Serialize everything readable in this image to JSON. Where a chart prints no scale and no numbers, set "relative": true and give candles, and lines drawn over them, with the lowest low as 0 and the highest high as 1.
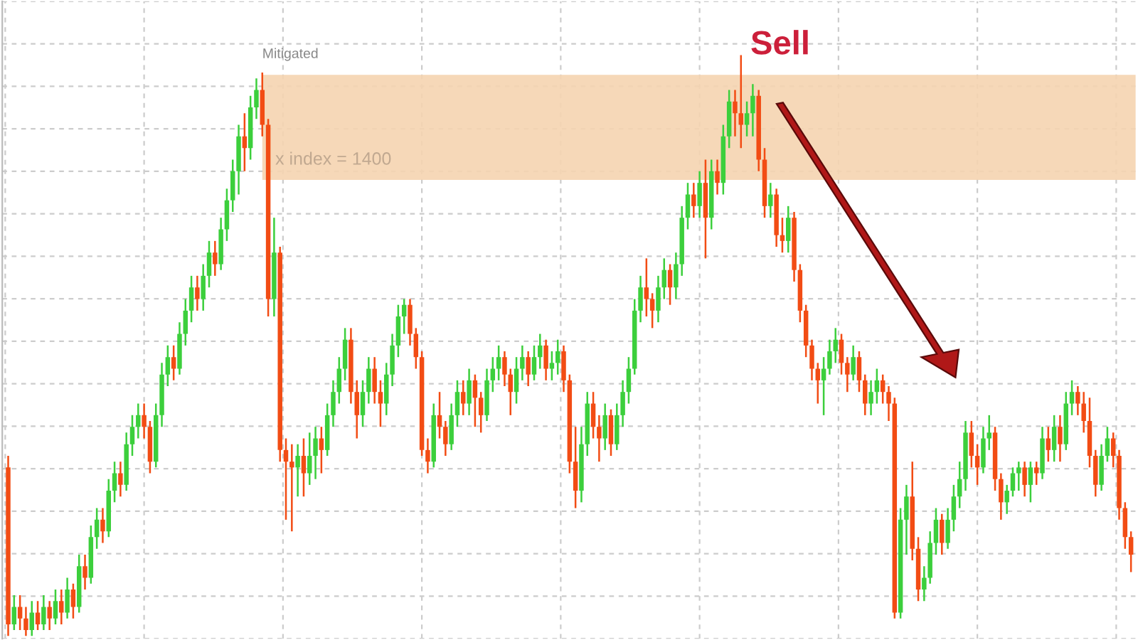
{
  "chart_data": {
    "type": "candlestick",
    "relative": true,
    "grid": true,
    "categories": [
      null,
      null,
      null,
      null,
      null,
      null,
      null,
      null,
      null,
      null,
      null,
      null,
      null,
      null,
      null,
      null,
      null,
      null,
      null,
      null,
      null,
      null,
      null,
      null,
      null,
      null,
      null,
      null,
      null,
      null,
      null,
      null,
      null,
      null,
      null,
      null,
      null,
      null,
      null,
      null,
      null,
      null,
      null,
      null,
      null,
      null,
      null,
      null,
      null,
      null,
      null,
      null,
      null,
      null,
      null,
      null,
      null,
      null,
      null,
      null,
      null,
      null,
      null,
      null,
      null,
      null,
      null,
      null,
      null,
      null,
      null,
      null,
      null,
      null,
      null,
      null,
      null,
      null,
      null,
      null,
      null,
      null,
      null,
      null,
      null,
      null,
      null,
      null,
      null,
      null,
      null,
      null,
      null,
      null,
      null,
      null,
      null,
      null,
      null,
      null,
      null,
      null,
      null,
      null,
      null,
      null,
      null,
      null,
      null,
      null,
      null,
      null,
      null,
      null,
      null,
      null,
      null,
      null,
      null,
      null,
      null,
      null,
      null,
      null,
      null,
      null,
      null,
      null,
      null,
      null,
      null,
      null,
      null,
      null,
      null,
      null,
      null,
      null,
      null,
      null,
      null,
      null,
      null,
      null,
      null,
      null,
      null,
      null,
      null,
      null,
      null,
      null,
      null,
      null,
      null,
      null,
      null,
      null,
      null,
      null,
      null,
      null,
      null,
      null,
      null,
      null,
      null,
      null,
      null,
      null,
      null,
      null,
      null,
      null,
      null,
      null,
      null,
      null,
      null,
      null,
      null,
      null,
      null,
      null,
      null,
      null,
      null,
      null,
      null,
      null,
      null
    ],
    "ohlc": [
      [
        0.29,
        0.31,
        0.0,
        0.02
      ],
      [
        0.02,
        0.07,
        0.01,
        0.05
      ],
      [
        0.05,
        0.07,
        0.01,
        0.03
      ],
      [
        0.03,
        0.05,
        0.0,
        0.01
      ],
      [
        0.01,
        0.06,
        0.0,
        0.04
      ],
      [
        0.04,
        0.06,
        0.01,
        0.02
      ],
      [
        0.02,
        0.07,
        0.01,
        0.05
      ],
      [
        0.05,
        0.06,
        0.01,
        0.03
      ],
      [
        0.03,
        0.08,
        0.02,
        0.06
      ],
      [
        0.06,
        0.08,
        0.02,
        0.04
      ],
      [
        0.04,
        0.1,
        0.03,
        0.08
      ],
      [
        0.08,
        0.09,
        0.03,
        0.05
      ],
      [
        0.05,
        0.14,
        0.04,
        0.12
      ],
      [
        0.12,
        0.14,
        0.08,
        0.1
      ],
      [
        0.1,
        0.19,
        0.09,
        0.17
      ],
      [
        0.17,
        0.22,
        0.15,
        0.2
      ],
      [
        0.2,
        0.22,
        0.16,
        0.18
      ],
      [
        0.18,
        0.27,
        0.17,
        0.25
      ],
      [
        0.25,
        0.3,
        0.23,
        0.28
      ],
      [
        0.28,
        0.3,
        0.24,
        0.26
      ],
      [
        0.26,
        0.35,
        0.25,
        0.33
      ],
      [
        0.33,
        0.38,
        0.31,
        0.36
      ],
      [
        0.36,
        0.4,
        0.34,
        0.38
      ],
      [
        0.38,
        0.4,
        0.34,
        0.36
      ],
      [
        0.36,
        0.37,
        0.28,
        0.3
      ],
      [
        0.3,
        0.4,
        0.29,
        0.38
      ],
      [
        0.38,
        0.47,
        0.36,
        0.45
      ],
      [
        0.45,
        0.5,
        0.43,
        0.48
      ],
      [
        0.48,
        0.5,
        0.44,
        0.46
      ],
      [
        0.46,
        0.54,
        0.45,
        0.52
      ],
      [
        0.52,
        0.58,
        0.5,
        0.56
      ],
      [
        0.56,
        0.62,
        0.54,
        0.6
      ],
      [
        0.6,
        0.62,
        0.56,
        0.58
      ],
      [
        0.58,
        0.64,
        0.56,
        0.62
      ],
      [
        0.62,
        0.68,
        0.6,
        0.66
      ],
      [
        0.66,
        0.68,
        0.62,
        0.64
      ],
      [
        0.64,
        0.72,
        0.63,
        0.7
      ],
      [
        0.7,
        0.77,
        0.68,
        0.75
      ],
      [
        0.75,
        0.82,
        0.73,
        0.8
      ],
      [
        0.8,
        0.88,
        0.76,
        0.86
      ],
      [
        0.86,
        0.9,
        0.8,
        0.84
      ],
      [
        0.84,
        0.93,
        0.82,
        0.91
      ],
      [
        0.91,
        0.96,
        0.89,
        0.94
      ],
      [
        0.94,
        0.97,
        0.86,
        0.88
      ],
      [
        0.88,
        0.89,
        0.55,
        0.58
      ],
      [
        0.58,
        0.72,
        0.55,
        0.66
      ],
      [
        0.66,
        0.67,
        0.3,
        0.32
      ],
      [
        0.32,
        0.34,
        0.2,
        0.3
      ],
      [
        0.3,
        0.33,
        0.18,
        0.29
      ],
      [
        0.29,
        0.33,
        0.24,
        0.31
      ],
      [
        0.31,
        0.34,
        0.24,
        0.28
      ],
      [
        0.28,
        0.35,
        0.26,
        0.31
      ],
      [
        0.31,
        0.36,
        0.27,
        0.34
      ],
      [
        0.34,
        0.36,
        0.28,
        0.32
      ],
      [
        0.32,
        0.4,
        0.31,
        0.38
      ],
      [
        0.38,
        0.44,
        0.36,
        0.42
      ],
      [
        0.42,
        0.48,
        0.4,
        0.46
      ],
      [
        0.46,
        0.53,
        0.44,
        0.51
      ],
      [
        0.51,
        0.53,
        0.4,
        0.42
      ],
      [
        0.42,
        0.44,
        0.34,
        0.38
      ],
      [
        0.38,
        0.44,
        0.36,
        0.42
      ],
      [
        0.42,
        0.48,
        0.4,
        0.46
      ],
      [
        0.46,
        0.48,
        0.4,
        0.42
      ],
      [
        0.42,
        0.44,
        0.36,
        0.4
      ],
      [
        0.4,
        0.47,
        0.38,
        0.45
      ],
      [
        0.45,
        0.52,
        0.43,
        0.5
      ],
      [
        0.5,
        0.57,
        0.48,
        0.55
      ],
      [
        0.55,
        0.58,
        0.52,
        0.57
      ],
      [
        0.57,
        0.58,
        0.5,
        0.52
      ],
      [
        0.52,
        0.53,
        0.46,
        0.48
      ],
      [
        0.48,
        0.49,
        0.31,
        0.32
      ],
      [
        0.32,
        0.34,
        0.28,
        0.3
      ],
      [
        0.3,
        0.4,
        0.29,
        0.38
      ],
      [
        0.38,
        0.42,
        0.34,
        0.36
      ],
      [
        0.36,
        0.37,
        0.31,
        0.33
      ],
      [
        0.33,
        0.4,
        0.32,
        0.38
      ],
      [
        0.38,
        0.44,
        0.36,
        0.42
      ],
      [
        0.42,
        0.44,
        0.38,
        0.4
      ],
      [
        0.4,
        0.46,
        0.38,
        0.44
      ],
      [
        0.44,
        0.45,
        0.36,
        0.41
      ],
      [
        0.41,
        0.42,
        0.35,
        0.38
      ],
      [
        0.38,
        0.46,
        0.37,
        0.44
      ],
      [
        0.44,
        0.48,
        0.42,
        0.46
      ],
      [
        0.46,
        0.5,
        0.44,
        0.48
      ],
      [
        0.48,
        0.49,
        0.43,
        0.45
      ],
      [
        0.45,
        0.46,
        0.38,
        0.42
      ],
      [
        0.42,
        0.48,
        0.4,
        0.46
      ],
      [
        0.46,
        0.5,
        0.44,
        0.48
      ],
      [
        0.48,
        0.49,
        0.43,
        0.45
      ],
      [
        0.45,
        0.5,
        0.44,
        0.48
      ],
      [
        0.48,
        0.52,
        0.46,
        0.5
      ],
      [
        0.5,
        0.51,
        0.44,
        0.46
      ],
      [
        0.46,
        0.49,
        0.44,
        0.47
      ],
      [
        0.47,
        0.51,
        0.45,
        0.49
      ],
      [
        0.49,
        0.5,
        0.42,
        0.44
      ],
      [
        0.44,
        0.45,
        0.28,
        0.3
      ],
      [
        0.3,
        0.36,
        0.22,
        0.25
      ],
      [
        0.25,
        0.36,
        0.23,
        0.33
      ],
      [
        0.33,
        0.42,
        0.31,
        0.4
      ],
      [
        0.4,
        0.42,
        0.34,
        0.36
      ],
      [
        0.36,
        0.38,
        0.3,
        0.34
      ],
      [
        0.34,
        0.4,
        0.32,
        0.38
      ],
      [
        0.38,
        0.39,
        0.31,
        0.33
      ],
      [
        0.33,
        0.4,
        0.32,
        0.38
      ],
      [
        0.38,
        0.44,
        0.36,
        0.42
      ],
      [
        0.42,
        0.48,
        0.4,
        0.46
      ],
      [
        0.46,
        0.58,
        0.45,
        0.56
      ],
      [
        0.56,
        0.62,
        0.54,
        0.6
      ],
      [
        0.6,
        0.65,
        0.55,
        0.58
      ],
      [
        0.58,
        0.59,
        0.53,
        0.56
      ],
      [
        0.56,
        0.62,
        0.54,
        0.6
      ],
      [
        0.6,
        0.65,
        0.58,
        0.63
      ],
      [
        0.63,
        0.64,
        0.57,
        0.6
      ],
      [
        0.6,
        0.66,
        0.58,
        0.64
      ],
      [
        0.64,
        0.74,
        0.62,
        0.72
      ],
      [
        0.72,
        0.78,
        0.7,
        0.76
      ],
      [
        0.76,
        0.78,
        0.72,
        0.74
      ],
      [
        0.74,
        0.8,
        0.72,
        0.78
      ],
      [
        0.78,
        0.82,
        0.65,
        0.72
      ],
      [
        0.72,
        0.82,
        0.7,
        0.8
      ],
      [
        0.8,
        0.82,
        0.76,
        0.78
      ],
      [
        0.78,
        0.88,
        0.76,
        0.86
      ],
      [
        0.86,
        0.94,
        0.84,
        0.92
      ],
      [
        0.92,
        0.94,
        0.86,
        0.9
      ],
      [
        0.9,
        1.0,
        0.84,
        0.88
      ],
      [
        0.88,
        0.92,
        0.86,
        0.9
      ],
      [
        0.9,
        0.95,
        0.86,
        0.93
      ],
      [
        0.93,
        0.94,
        0.8,
        0.82
      ],
      [
        0.82,
        0.84,
        0.72,
        0.74
      ],
      [
        0.74,
        0.78,
        0.72,
        0.76
      ],
      [
        0.76,
        0.77,
        0.67,
        0.69
      ],
      [
        0.69,
        0.72,
        0.66,
        0.68
      ],
      [
        0.68,
        0.74,
        0.66,
        0.72
      ],
      [
        0.72,
        0.73,
        0.61,
        0.63
      ],
      [
        0.63,
        0.64,
        0.54,
        0.56
      ],
      [
        0.56,
        0.57,
        0.48,
        0.5
      ],
      [
        0.5,
        0.51,
        0.44,
        0.46
      ],
      [
        0.46,
        0.47,
        0.4,
        0.44
      ],
      [
        0.44,
        0.48,
        0.38,
        0.46
      ],
      [
        0.46,
        0.51,
        0.45,
        0.49
      ],
      [
        0.49,
        0.53,
        0.47,
        0.51
      ],
      [
        0.51,
        0.52,
        0.45,
        0.47
      ],
      [
        0.47,
        0.48,
        0.42,
        0.45
      ],
      [
        0.45,
        0.5,
        0.44,
        0.48
      ],
      [
        0.48,
        0.49,
        0.42,
        0.44
      ],
      [
        0.44,
        0.45,
        0.38,
        0.4
      ],
      [
        0.4,
        0.44,
        0.38,
        0.42
      ],
      [
        0.42,
        0.46,
        0.4,
        0.44
      ],
      [
        0.44,
        0.45,
        0.4,
        0.42
      ],
      [
        0.42,
        0.43,
        0.37,
        0.4
      ],
      [
        0.4,
        0.41,
        0.03,
        0.04
      ],
      [
        0.04,
        0.22,
        0.03,
        0.2
      ],
      [
        0.2,
        0.26,
        0.14,
        0.24
      ],
      [
        0.24,
        0.3,
        0.13,
        0.15
      ],
      [
        0.15,
        0.17,
        0.06,
        0.08
      ],
      [
        0.08,
        0.12,
        0.06,
        0.1
      ],
      [
        0.1,
        0.18,
        0.09,
        0.16
      ],
      [
        0.16,
        0.22,
        0.14,
        0.2
      ],
      [
        0.2,
        0.21,
        0.14,
        0.16
      ],
      [
        0.16,
        0.22,
        0.15,
        0.2
      ],
      [
        0.2,
        0.26,
        0.18,
        0.24
      ],
      [
        0.24,
        0.3,
        0.22,
        0.27
      ],
      [
        0.27,
        0.37,
        0.25,
        0.35
      ],
      [
        0.35,
        0.37,
        0.29,
        0.31
      ],
      [
        0.31,
        0.33,
        0.26,
        0.29
      ],
      [
        0.29,
        0.36,
        0.28,
        0.34
      ],
      [
        0.34,
        0.38,
        0.32,
        0.35
      ],
      [
        0.35,
        0.36,
        0.25,
        0.27
      ],
      [
        0.27,
        0.28,
        0.2,
        0.23
      ],
      [
        0.23,
        0.26,
        0.21,
        0.25
      ],
      [
        0.25,
        0.29,
        0.24,
        0.28
      ],
      [
        0.28,
        0.3,
        0.25,
        0.29
      ],
      [
        0.29,
        0.3,
        0.24,
        0.26
      ],
      [
        0.26,
        0.3,
        0.23,
        0.29
      ],
      [
        0.29,
        0.3,
        0.26,
        0.28
      ],
      [
        0.28,
        0.36,
        0.27,
        0.34
      ],
      [
        0.34,
        0.36,
        0.3,
        0.32
      ],
      [
        0.32,
        0.38,
        0.3,
        0.36
      ],
      [
        0.36,
        0.38,
        0.3,
        0.33
      ],
      [
        0.33,
        0.42,
        0.32,
        0.4
      ],
      [
        0.4,
        0.44,
        0.38,
        0.42
      ],
      [
        0.42,
        0.43,
        0.38,
        0.4
      ],
      [
        0.4,
        0.42,
        0.35,
        0.37
      ],
      [
        0.37,
        0.41,
        0.29,
        0.31
      ],
      [
        0.31,
        0.32,
        0.24,
        0.26
      ],
      [
        0.26,
        0.33,
        0.25,
        0.31
      ],
      [
        0.31,
        0.36,
        0.3,
        0.34
      ],
      [
        0.34,
        0.35,
        0.29,
        0.31
      ],
      [
        0.31,
        0.32,
        0.2,
        0.22
      ],
      [
        0.22,
        0.23,
        0.15,
        0.17
      ],
      [
        0.17,
        0.18,
        0.11,
        0.14
      ]
    ],
    "bands": [
      {
        "axis": "y",
        "from": 0.785,
        "to": 0.966,
        "label": "x index = 1400",
        "color": "#f5d4b0"
      }
    ],
    "annotations": [
      {
        "text": "Mitigated",
        "y": 0.97
      },
      "Sell"
    ]
  }
}
